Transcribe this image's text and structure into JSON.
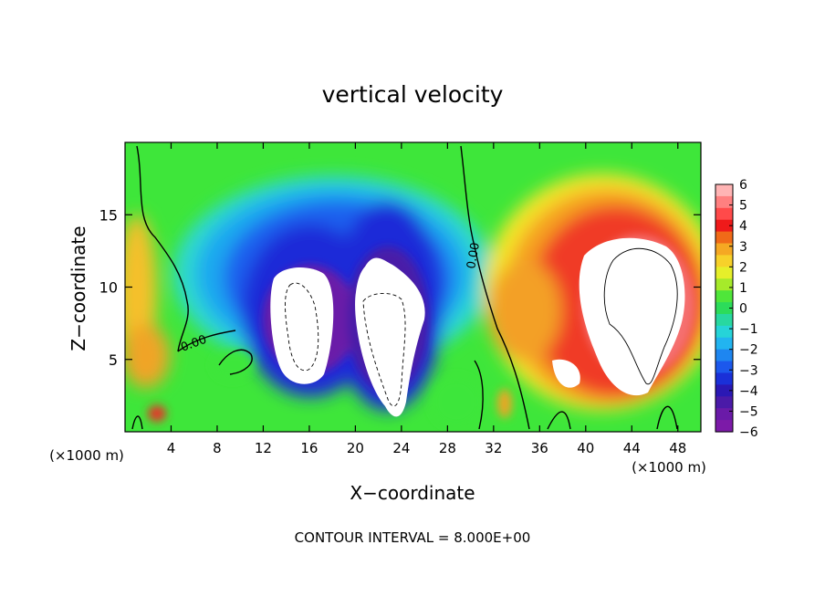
{
  "chart_data": {
    "type": "heatmap",
    "title": "vertical velocity",
    "xlabel": "X−coordinate",
    "ylabel": "Z−coordinate",
    "x_unit": "(×1000 m)",
    "xlim": [
      0,
      50
    ],
    "ylim": [
      0,
      20
    ],
    "x_ticks": [
      4,
      8,
      12,
      16,
      20,
      24,
      28,
      32,
      36,
      40,
      44,
      48
    ],
    "y_ticks": [
      5,
      10,
      15
    ],
    "colorbar": {
      "ticks": [
        6,
        5,
        4,
        3,
        2,
        1,
        0,
        -1,
        -2,
        -3,
        -4,
        -5,
        -6
      ],
      "tick_labels": [
        "6",
        "5",
        "4",
        "3",
        "2",
        "1",
        "0",
        "−1",
        "−2",
        "−3",
        "−4",
        "−5",
        "−6"
      ]
    },
    "contour_labels": [
      "0.00",
      "0.00"
    ],
    "footer": "CONTOUR INTERVAL = 8.000E+00"
  }
}
